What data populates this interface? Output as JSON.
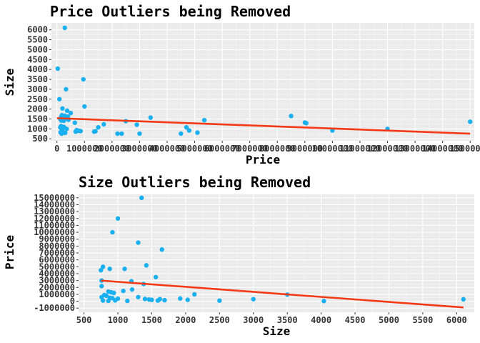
{
  "chart_data": [
    {
      "type": "scatter",
      "title": "Price Outliers being Removed",
      "xlabel": "Price",
      "ylabel": "Size",
      "xlim": [
        -200000,
        15150000
      ],
      "ylim": [
        400,
        6350
      ],
      "x_ticks": [
        0,
        1000000,
        2000000,
        3000000,
        4000000,
        5000000,
        6000000,
        7000000,
        8000000,
        9000000,
        10000000,
        11000000,
        12000000,
        13000000,
        14000000,
        15000000
      ],
      "x_tick_labels": [
        "0",
        "1000000",
        "2000000",
        "3000000",
        "4000000",
        "5000000",
        "6000000",
        "7000000",
        "8000000",
        "9000000",
        "10000000",
        "11000000",
        "12000000",
        "13000000",
        "14000000",
        "15000000"
      ],
      "y_ticks": [
        500,
        1000,
        1500,
        2000,
        2500,
        3000,
        3500,
        4000,
        4500,
        5000,
        5500,
        6000
      ],
      "y_tick_labels": [
        "500",
        "1000",
        "1500",
        "2000",
        "2500",
        "3000",
        "3500",
        "4000",
        "4500",
        "5000",
        "5500",
        "6000"
      ],
      "grid": true,
      "point_color": "#1ab0f0",
      "line_color": "#f23a16",
      "fit_line": {
        "x": [
          0,
          15000000
        ],
        "y": [
          1540,
          760
        ]
      },
      "points": [
        {
          "x": 285000,
          "y": 6100
        },
        {
          "x": 30000,
          "y": 4040
        },
        {
          "x": 960000,
          "y": 3500
        },
        {
          "x": 330000,
          "y": 3000
        },
        {
          "x": 90000,
          "y": 2500
        },
        {
          "x": 1000000,
          "y": 2130
        },
        {
          "x": 200000,
          "y": 2030
        },
        {
          "x": 370000,
          "y": 1920
        },
        {
          "x": 500000,
          "y": 1800
        },
        {
          "x": 180000,
          "y": 1690
        },
        {
          "x": 280000,
          "y": 1670
        },
        {
          "x": 400000,
          "y": 1620
        },
        {
          "x": 150000,
          "y": 1590
        },
        {
          "x": 230000,
          "y": 1560
        },
        {
          "x": 330000,
          "y": 1530
        },
        {
          "x": 120000,
          "y": 1500
        },
        {
          "x": 210000,
          "y": 1490
        },
        {
          "x": 420000,
          "y": 1460
        },
        {
          "x": 160000,
          "y": 1420
        },
        {
          "x": 250000,
          "y": 1410
        },
        {
          "x": 650000,
          "y": 1310
        },
        {
          "x": 150000,
          "y": 1140
        },
        {
          "x": 250000,
          "y": 1100
        },
        {
          "x": 120000,
          "y": 1070
        },
        {
          "x": 350000,
          "y": 1000
        },
        {
          "x": 190000,
          "y": 950
        },
        {
          "x": 720000,
          "y": 940
        },
        {
          "x": 800000,
          "y": 900
        },
        {
          "x": 860000,
          "y": 890
        },
        {
          "x": 680000,
          "y": 860
        },
        {
          "x": 130000,
          "y": 830
        },
        {
          "x": 230000,
          "y": 810
        },
        {
          "x": 300000,
          "y": 800
        },
        {
          "x": 170000,
          "y": 760
        },
        {
          "x": 1350000,
          "y": 860
        },
        {
          "x": 1400000,
          "y": 880
        },
        {
          "x": 1500000,
          "y": 1080
        },
        {
          "x": 1700000,
          "y": 1230
        },
        {
          "x": 2200000,
          "y": 760
        },
        {
          "x": 2350000,
          "y": 760
        },
        {
          "x": 2500000,
          "y": 1390
        },
        {
          "x": 2900000,
          "y": 1210
        },
        {
          "x": 3000000,
          "y": 760
        },
        {
          "x": 3400000,
          "y": 1570
        },
        {
          "x": 4500000,
          "y": 760
        },
        {
          "x": 4700000,
          "y": 1080
        },
        {
          "x": 4800000,
          "y": 920
        },
        {
          "x": 5100000,
          "y": 810
        },
        {
          "x": 5350000,
          "y": 1440
        },
        {
          "x": 8500000,
          "y": 1650
        },
        {
          "x": 9000000,
          "y": 1320
        },
        {
          "x": 9050000,
          "y": 1290
        },
        {
          "x": 10000000,
          "y": 920
        },
        {
          "x": 12000000,
          "y": 1000
        },
        {
          "x": 15000000,
          "y": 1360
        }
      ]
    },
    {
      "type": "scatter",
      "title": "Size Outliers being Removed",
      "xlabel": "Size",
      "ylabel": "Price",
      "xlim": [
        420,
        6260
      ],
      "ylim": [
        -1600000,
        15500000
      ],
      "x_ticks": [
        500,
        1000,
        1500,
        2000,
        2500,
        3000,
        3500,
        4000,
        4500,
        5000,
        5500,
        6000
      ],
      "x_tick_labels": [
        "500",
        "1000",
        "1500",
        "2000",
        "2500",
        "3000",
        "3500",
        "4000",
        "4500",
        "5000",
        "5500",
        "6000"
      ],
      "y_ticks": [
        -1000000,
        0,
        1000000,
        2000000,
        3000000,
        4000000,
        5000000,
        6000000,
        7000000,
        8000000,
        9000000,
        10000000,
        11000000,
        12000000,
        13000000,
        14000000,
        15000000
      ],
      "y_tick_labels": [
        "-1000000",
        "0",
        "1000000",
        "2000000",
        "3000000",
        "4000000",
        "5000000",
        "6000000",
        "7000000",
        "8000000",
        "9000000",
        "10000000",
        "11000000",
        "12000000",
        "13000000",
        "14000000",
        "15000000"
      ],
      "grid": true,
      "point_color": "#1ab0f0",
      "line_color": "#f23a16",
      "fit_line": {
        "x": [
          750,
          6100
        ],
        "y": [
          3000000,
          -900000
        ]
      },
      "points": [
        {
          "x": 1350,
          "y": 15000000
        },
        {
          "x": 1000,
          "y": 12000000
        },
        {
          "x": 920,
          "y": 10000000
        },
        {
          "x": 1300,
          "y": 8500000
        },
        {
          "x": 1650,
          "y": 7500000
        },
        {
          "x": 780,
          "y": 5000000
        },
        {
          "x": 1420,
          "y": 5200000
        },
        {
          "x": 880,
          "y": 4700000
        },
        {
          "x": 1100,
          "y": 4700000
        },
        {
          "x": 750,
          "y": 4500000
        },
        {
          "x": 1560,
          "y": 3500000
        },
        {
          "x": 760,
          "y": 3000000
        },
        {
          "x": 1200,
          "y": 2900000
        },
        {
          "x": 1380,
          "y": 2500000
        },
        {
          "x": 760,
          "y": 2200000
        },
        {
          "x": 1210,
          "y": 1700000
        },
        {
          "x": 1080,
          "y": 1500000
        },
        {
          "x": 860,
          "y": 1400000
        },
        {
          "x": 900,
          "y": 1300000
        },
        {
          "x": 940,
          "y": 1200000
        },
        {
          "x": 2130,
          "y": 1000000
        },
        {
          "x": 800,
          "y": 900000
        },
        {
          "x": 830,
          "y": 800000
        },
        {
          "x": 3500,
          "y": 960000
        },
        {
          "x": 760,
          "y": 600000
        },
        {
          "x": 880,
          "y": 500000
        },
        {
          "x": 920,
          "y": 450000
        },
        {
          "x": 1000,
          "y": 380000
        },
        {
          "x": 1300,
          "y": 600000
        },
        {
          "x": 1400,
          "y": 330000
        },
        {
          "x": 1620,
          "y": 300000
        },
        {
          "x": 1920,
          "y": 400000
        },
        {
          "x": 3000,
          "y": 300000
        },
        {
          "x": 780,
          "y": 100000
        },
        {
          "x": 860,
          "y": 50000
        },
        {
          "x": 960,
          "y": 120000
        },
        {
          "x": 1140,
          "y": 50000
        },
        {
          "x": 1500,
          "y": 200000
        },
        {
          "x": 1690,
          "y": 150000
        },
        {
          "x": 2030,
          "y": 200000
        },
        {
          "x": 2500,
          "y": 90000
        },
        {
          "x": 4040,
          "y": 30000
        },
        {
          "x": 6100,
          "y": 285000
        },
        {
          "x": 1590,
          "y": 100000
        },
        {
          "x": 1460,
          "y": 250000
        }
      ]
    }
  ]
}
